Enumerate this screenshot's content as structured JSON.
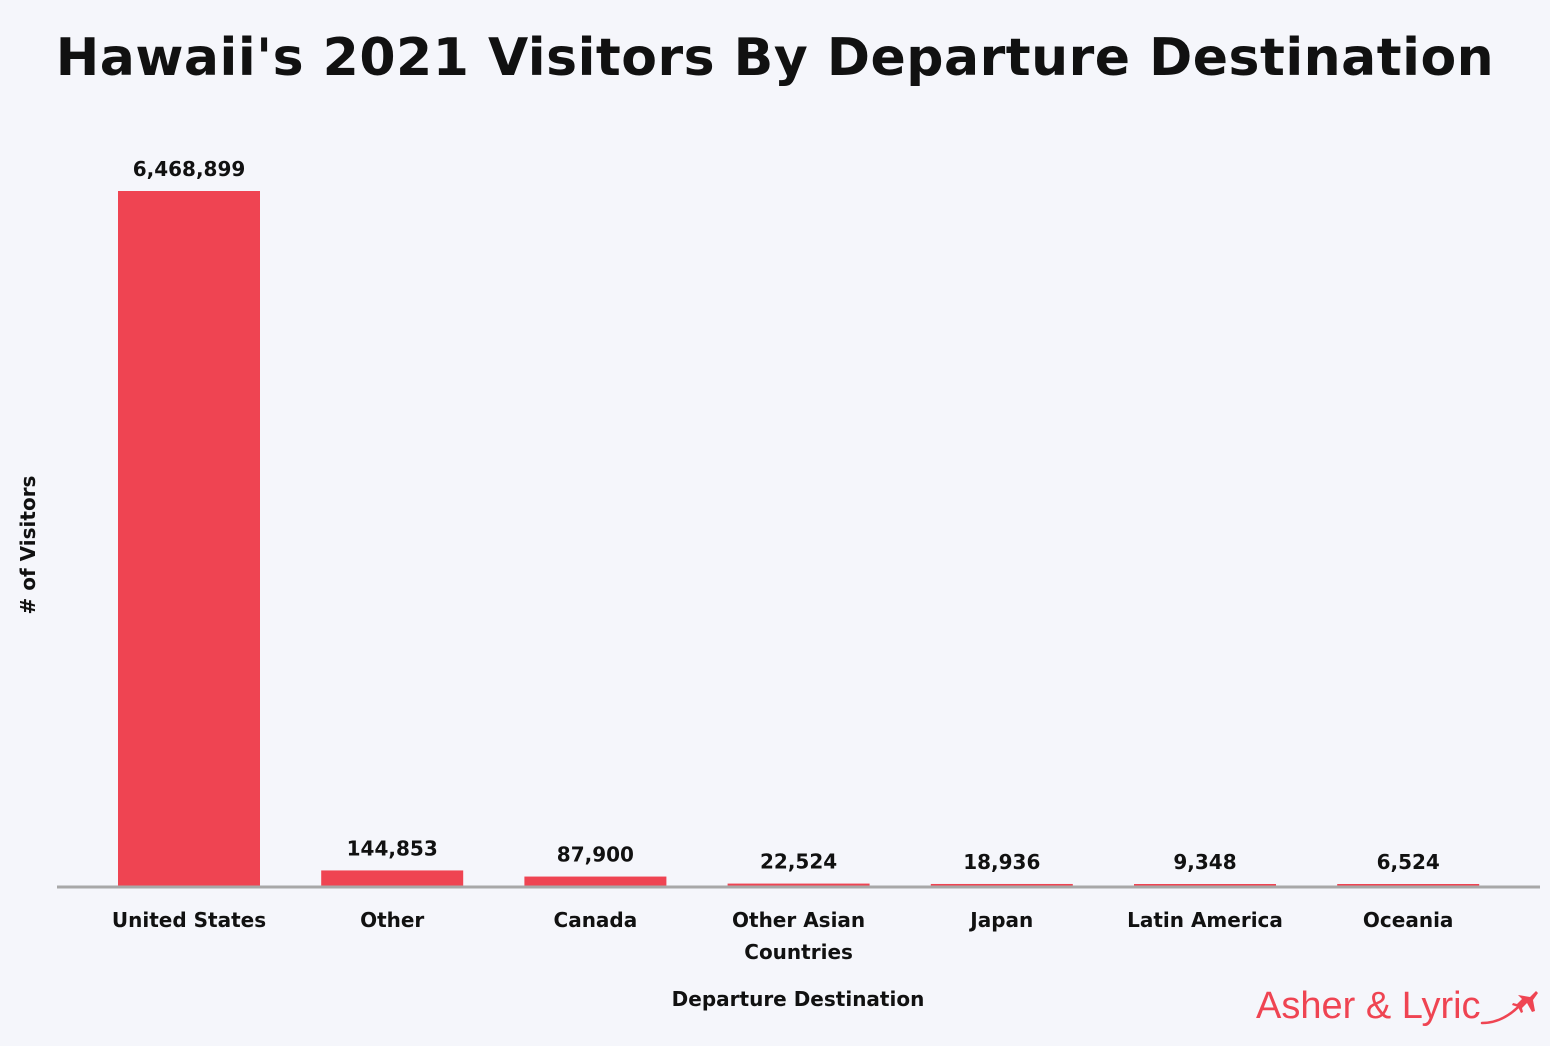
{
  "chart_data": {
    "type": "bar",
    "title": "Hawaii's 2021 Visitors By Departure Destination",
    "xlabel": "Departure Destination",
    "ylabel": "# of Visitors",
    "categories": [
      "United States",
      "Other",
      "Canada",
      "Other Asian Countries",
      "Japan",
      "Latin America",
      "Oceania"
    ],
    "values": [
      6468899,
      144853,
      87900,
      22524,
      18936,
      9348,
      6524
    ],
    "value_labels": [
      "6,468,899",
      "144,853",
      "87,900",
      "22,524",
      "18,936",
      "9,348",
      "6,524"
    ],
    "ylim": [
      0,
      6468899
    ],
    "grid": false,
    "legend": "none",
    "bar_color": "#ef4452",
    "axis_color": "#a8a8a8",
    "background": "#f5f6fb"
  },
  "brand": {
    "name": "Asher & Lyric",
    "icon": "airplane-icon",
    "color": "#ef4452"
  }
}
